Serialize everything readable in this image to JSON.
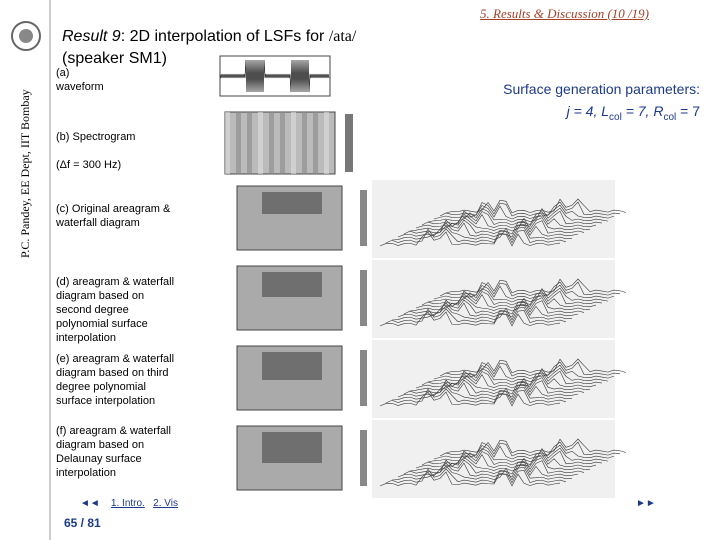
{
  "header": {
    "section": "5. Results & Discussion (10 /19)",
    "author": "P.C. Pandey, EE Dept, IIT Bombay"
  },
  "title": {
    "label": "Result 9",
    "text": ": 2D interpolation of LSFs for ",
    "phoneme": "/ata/",
    "speaker": "(speaker SM1)"
  },
  "panels": [
    {
      "label": "(a)",
      "text": "waveform"
    },
    {
      "label": "(b) Spectrogram",
      "text": "(Δf = 300 Hz)"
    },
    {
      "label": "(c) Original",
      "text": "areagram & waterfall diagram"
    },
    {
      "label": "(d) areagram &",
      "text": "waterfall diagram based on second degree polynomial surface interpolation"
    },
    {
      "label": "(e) areagram &",
      "text": "waterfall diagram based on third degree polynomial surface interpolation"
    },
    {
      "label": "(f) areagram &",
      "text": "waterfall diagram based on Delaunay surface interpolation"
    }
  ],
  "parameters": {
    "heading": "Surface generation parameters:",
    "parts": [
      "j = 4, L",
      "col",
      " = 7, R",
      "col",
      " = 7"
    ]
  },
  "navigation": {
    "prev": "◄◄",
    "links": [
      "1. Intro.",
      "2. Vis"
    ],
    "next": "►►",
    "page": "65 / 81"
  }
}
